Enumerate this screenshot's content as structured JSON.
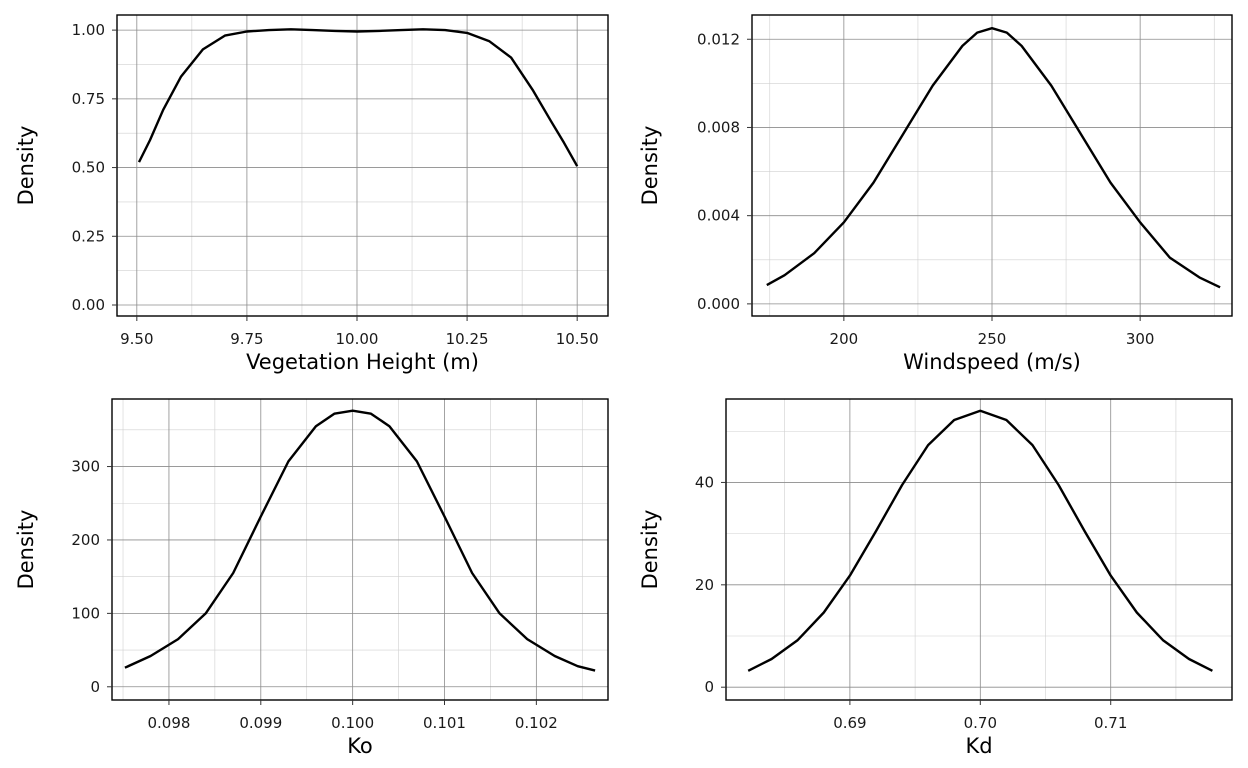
{
  "chart_data": [
    {
      "type": "line",
      "xlabel": "Vegetation Height (m)",
      "ylabel": "Density",
      "xlim": [
        9.455,
        10.57
      ],
      "ylim": [
        -0.04,
        1.055
      ],
      "xticks": [
        9.5,
        9.75,
        10.0,
        10.25,
        10.5
      ],
      "xtick_labels": [
        "9.50",
        "9.75",
        "10.00",
        "10.25",
        "10.50"
      ],
      "yticks": [
        0,
        0.25,
        0.5,
        0.75,
        1.0
      ],
      "ytick_labels": [
        "0.00",
        "0.25",
        "0.50",
        "0.75",
        "1.00"
      ],
      "grid": true,
      "x": [
        9.505,
        9.53,
        9.56,
        9.6,
        9.65,
        9.7,
        9.75,
        9.8,
        9.85,
        9.9,
        9.95,
        10.0,
        10.05,
        10.1,
        10.15,
        10.2,
        10.25,
        10.3,
        10.35,
        10.4,
        10.44,
        10.47,
        10.5
      ],
      "y": [
        0.52,
        0.6,
        0.71,
        0.83,
        0.93,
        0.98,
        0.995,
        1.0,
        1.003,
        1.0,
        0.997,
        0.995,
        0.997,
        1.0,
        1.003,
        1.0,
        0.99,
        0.96,
        0.9,
        0.78,
        0.67,
        0.59,
        0.505
      ]
    },
    {
      "type": "line",
      "xlabel": "Windspeed (m/s)",
      "ylabel": "Density",
      "xlim": [
        169,
        331
      ],
      "ylim": [
        -0.00055,
        0.0131
      ],
      "xticks": [
        200,
        250,
        300
      ],
      "xtick_labels": [
        "200",
        "250",
        "300"
      ],
      "yticks": [
        0,
        0.004,
        0.008,
        0.012
      ],
      "ytick_labels": [
        "0.000",
        "0.004",
        "0.008",
        "0.012"
      ],
      "grid": true,
      "x": [
        174,
        180,
        190,
        200,
        210,
        220,
        230,
        240,
        245,
        250,
        255,
        260,
        270,
        280,
        290,
        300,
        310,
        320,
        327
      ],
      "y": [
        0.00085,
        0.0013,
        0.0023,
        0.0037,
        0.0055,
        0.0077,
        0.0099,
        0.0117,
        0.0123,
        0.0125,
        0.0123,
        0.0117,
        0.0099,
        0.0077,
        0.0055,
        0.0037,
        0.0021,
        0.0012,
        0.00075
      ]
    },
    {
      "type": "line",
      "xlabel": "Ko",
      "ylabel": "Density",
      "xlim": [
        0.09738,
        0.10278
      ],
      "ylim": [
        -18,
        392
      ],
      "xticks": [
        0.098,
        0.099,
        0.1,
        0.101,
        0.102
      ],
      "xtick_labels": [
        "0.098",
        "0.099",
        "0.100",
        "0.101",
        "0.102"
      ],
      "yticks": [
        0,
        100,
        200,
        300
      ],
      "ytick_labels": [
        "0",
        "100",
        "200",
        "300"
      ],
      "grid": true,
      "x": [
        0.09752,
        0.0978,
        0.0981,
        0.0984,
        0.0987,
        0.099,
        0.0993,
        0.0996,
        0.0998,
        0.1,
        0.1002,
        0.1004,
        0.1007,
        0.101,
        0.1013,
        0.1016,
        0.1019,
        0.1022,
        0.10245,
        0.10264
      ],
      "y": [
        26,
        42,
        65,
        100,
        155,
        232,
        307,
        355,
        372,
        376,
        372,
        355,
        307,
        232,
        155,
        100,
        65,
        42,
        28,
        22
      ]
    },
    {
      "type": "line",
      "xlabel": "Kd",
      "ylabel": "Density",
      "xlim": [
        0.6805,
        0.7193
      ],
      "ylim": [
        -2.5,
        56.3
      ],
      "xticks": [
        0.69,
        0.7,
        0.71
      ],
      "xtick_labels": [
        "0.69",
        "0.70",
        "0.71"
      ],
      "yticks": [
        0,
        20,
        40
      ],
      "ytick_labels": [
        "0",
        "20",
        "40"
      ],
      "grid": true,
      "x": [
        0.6822,
        0.684,
        0.686,
        0.688,
        0.69,
        0.692,
        0.694,
        0.696,
        0.698,
        0.7,
        0.702,
        0.704,
        0.706,
        0.708,
        0.71,
        0.712,
        0.714,
        0.716,
        0.7178
      ],
      "y": [
        3.2,
        5.5,
        9.2,
        14.6,
        21.8,
        30.5,
        39.5,
        47.3,
        52.2,
        54.0,
        52.2,
        47.3,
        39.5,
        30.5,
        21.8,
        14.6,
        9.2,
        5.5,
        3.2
      ]
    }
  ]
}
